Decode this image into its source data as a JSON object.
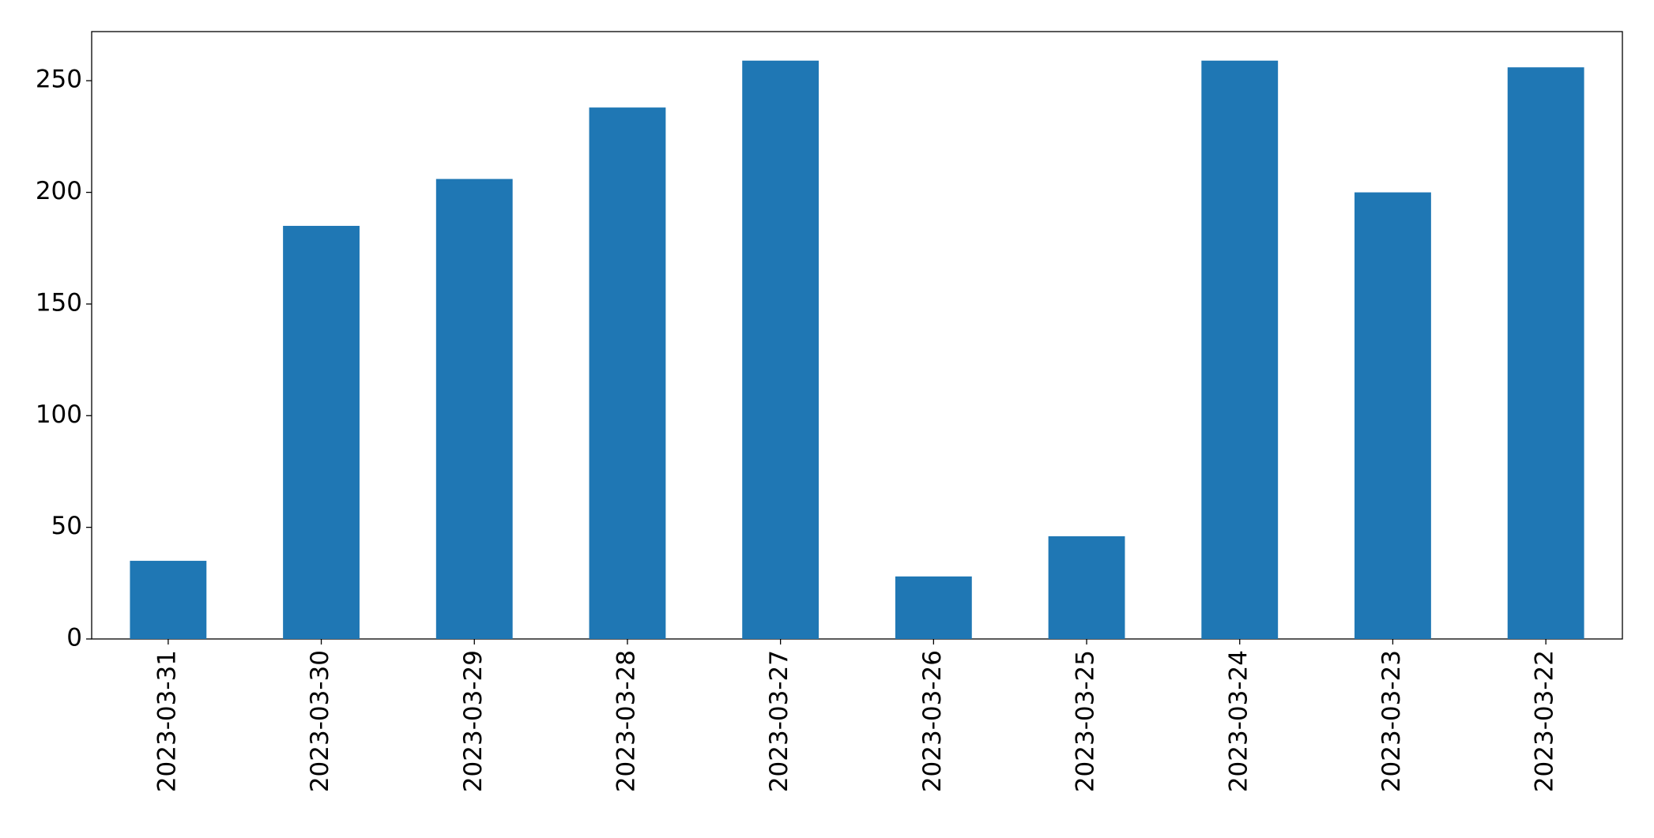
{
  "chart_data": {
    "type": "bar",
    "categories": [
      "2023-03-31",
      "2023-03-30",
      "2023-03-29",
      "2023-03-28",
      "2023-03-27",
      "2023-03-26",
      "2023-03-25",
      "2023-03-24",
      "2023-03-23",
      "2023-03-22"
    ],
    "values": [
      35,
      185,
      206,
      238,
      259,
      28,
      46,
      259,
      200,
      256
    ],
    "color": "#1f77b4",
    "ylim": [
      0,
      272
    ],
    "yticks": [
      0,
      50,
      100,
      150,
      200,
      250
    ],
    "grid": false
  }
}
